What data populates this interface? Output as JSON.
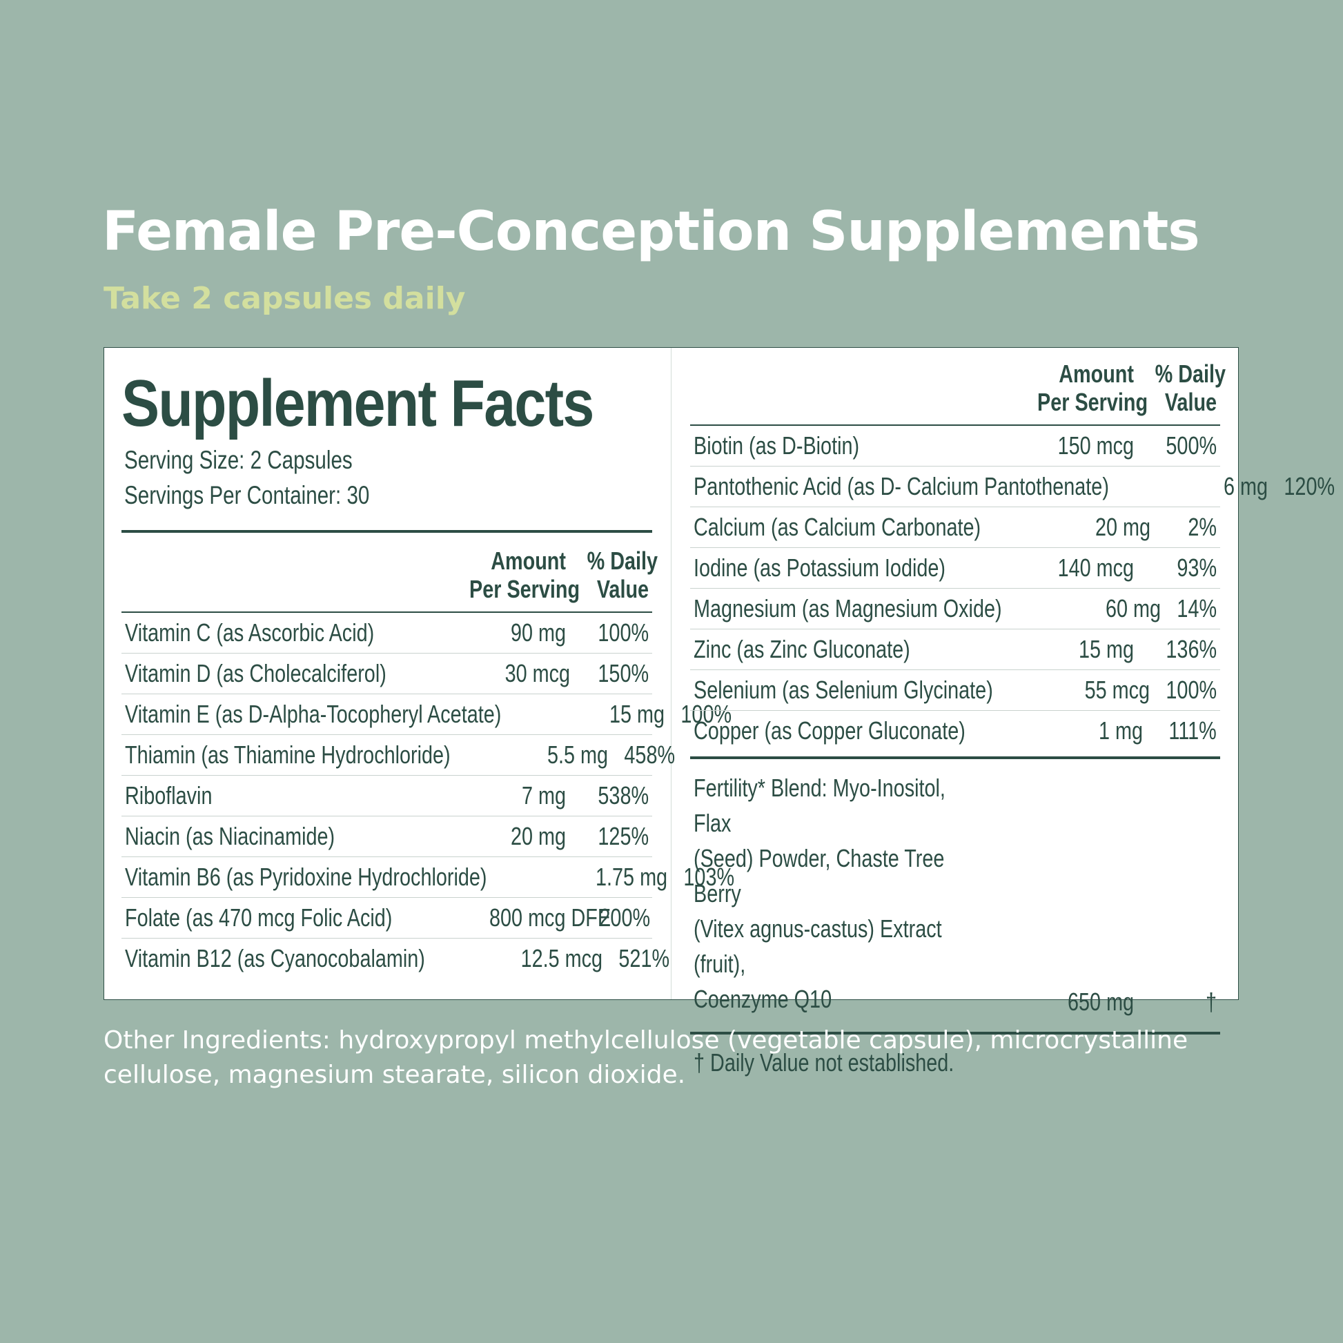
{
  "page": {
    "title": "Female Pre-Conception Supplements",
    "subtitle": "Take 2 capsules daily"
  },
  "facts": {
    "heading": "Supplement Facts",
    "serving_size": "Serving Size: 2 Capsules",
    "servings_per_container": "Servings Per Container: 30",
    "header_amount_1": "Amount",
    "header_amount_2": "Per Serving",
    "header_dv_1": "% Daily",
    "header_dv_2": "Value",
    "left_rows": [
      {
        "name": "Vitamin C (as Ascorbic Acid)",
        "amount": "90 mg",
        "dv": "100%"
      },
      {
        "name": "Vitamin D (as Cholecalciferol)",
        "amount": "30 mcg",
        "dv": "150%"
      },
      {
        "name": "Vitamin E (as D-Alpha-Tocopheryl Acetate)",
        "amount": "15 mg",
        "dv": "100%"
      },
      {
        "name": "Thiamin (as Thiamine Hydrochloride)",
        "amount": "5.5 mg",
        "dv": "458%"
      },
      {
        "name": "Riboflavin",
        "amount": "7 mg",
        "dv": "538%"
      },
      {
        "name": "Niacin (as Niacinamide)",
        "amount": "20 mg",
        "dv": "125%"
      },
      {
        "name": "Vitamin B6 (as Pyridoxine Hydrochloride)",
        "amount": "1.75 mg",
        "dv": "103%"
      },
      {
        "name": "Folate (as 470 mcg Folic Acid)",
        "amount": "800 mcg DFE",
        "dv": "200%"
      },
      {
        "name": "Vitamin B12 (as Cyanocobalamin)",
        "amount": "12.5 mcg",
        "dv": "521%"
      }
    ],
    "right_rows": [
      {
        "name": "Biotin (as D-Biotin)",
        "amount": "150 mcg",
        "dv": "500%"
      },
      {
        "name": "Pantothenic Acid (as D- Calcium Pantothenate)",
        "amount": "6 mg",
        "dv": "120%"
      },
      {
        "name": "Calcium (as Calcium Carbonate)",
        "amount": "20 mg",
        "dv": "2%"
      },
      {
        "name": "Iodine (as Potassium Iodide)",
        "amount": "140 mcg",
        "dv": "93%"
      },
      {
        "name": "Magnesium (as Magnesium Oxide)",
        "amount": "60 mg",
        "dv": "14%"
      },
      {
        "name": "Zinc (as Zinc Gluconate)",
        "amount": "15 mg",
        "dv": "136%"
      },
      {
        "name": "Selenium (as Selenium Glycinate)",
        "amount": "55 mcg",
        "dv": "100%"
      },
      {
        "name": "Copper (as Copper Gluconate)",
        "amount": "1 mg",
        "dv": "111%"
      }
    ],
    "blend": {
      "name": "Fertility* Blend: Myo-Inositol, Flax\n(Seed) Powder, Chaste Tree Berry\n(Vitex agnus-castus) Extract (fruit),\nCoenzyme Q10",
      "amount": "650 mg",
      "dv": "†"
    },
    "footnote": "† Daily Value not established."
  },
  "other_ingredients": "Other Ingredients: hydroxypropyl methylcellulose (vegetable capsule), microcrystalline cellulose, magnesium stearate, silicon dioxide.",
  "colors": {
    "background": "#9db6aa",
    "title": "#ffffff",
    "subtitle": "#d3df9e",
    "label_text": "#2c4d44",
    "panel": "#ffffff"
  }
}
